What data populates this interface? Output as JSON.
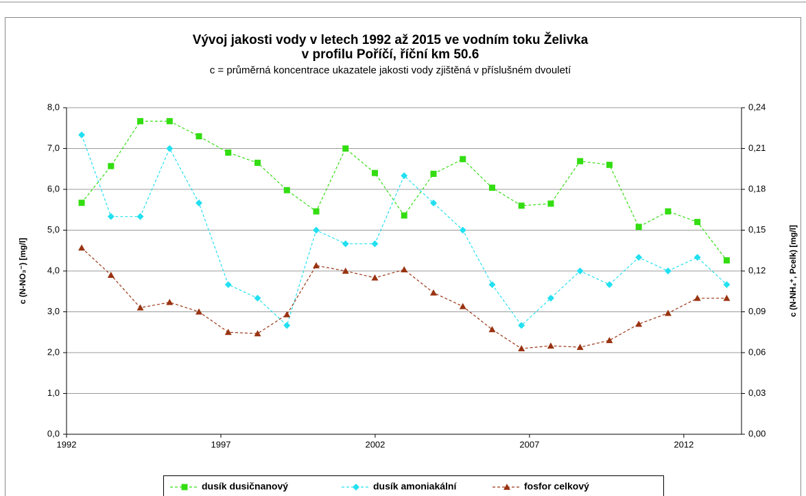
{
  "chart_data": {
    "type": "line",
    "title": "Vývoj jakosti vody v letech 1992 až 2015 ve vodním toku Želivka",
    "title_line2": "v profilu Poříčí, říční km 50.6",
    "subtitle": "c = průměrná koncentrace ukazatele jakosti vody zjištěná v příslušném dvouletí",
    "y_label": "c (N-NO₃⁻) [mg/l]",
    "y2_label": "c (N-NH₄⁺, Pcelk) [mg/l]",
    "x": [
      1992.49,
      1993.44,
      1994.39,
      1995.34,
      1996.29,
      1997.24,
      1998.19,
      1999.14,
      2000.09,
      2001.04,
      2001.99,
      2002.94,
      2003.89,
      2004.84,
      2005.79,
      2006.74,
      2007.69,
      2008.64,
      2009.59,
      2010.54,
      2011.49,
      2012.44,
      2013.39
    ],
    "xlim": [
      1992,
      2013.87
    ],
    "xticks": [
      1992,
      1997,
      2002,
      2007,
      2012
    ],
    "ylim": [
      0,
      8
    ],
    "yticks": [
      {
        "value": 0,
        "label": "0,0"
      },
      {
        "value": 1,
        "label": "1,0"
      },
      {
        "value": 2,
        "label": "2,0"
      },
      {
        "value": 3,
        "label": "3,0"
      },
      {
        "value": 4,
        "label": "4,0"
      },
      {
        "value": 5,
        "label": "5,0"
      },
      {
        "value": 6,
        "label": "6,0"
      },
      {
        "value": 7,
        "label": "7,0"
      },
      {
        "value": 8,
        "label": "8,0"
      }
    ],
    "y2lim": [
      0,
      0.24
    ],
    "y2ticks": [
      {
        "value": 0,
        "label": "0,00"
      },
      {
        "value": 0.03,
        "label": "0,03"
      },
      {
        "value": 0.06,
        "label": "0,06"
      },
      {
        "value": 0.09,
        "label": "0,09"
      },
      {
        "value": 0.12,
        "label": "0,12"
      },
      {
        "value": 0.15,
        "label": "0,15"
      },
      {
        "value": 0.18,
        "label": "0,18"
      },
      {
        "value": 0.21,
        "label": "0,21"
      },
      {
        "value": 0.24,
        "label": "0,24"
      }
    ],
    "grid": true,
    "legend": "bottom",
    "series": [
      {
        "name": "dusík dusičnanový",
        "color": "#33dd11",
        "marker": "square",
        "values": [
          5.67,
          6.57,
          7.67,
          7.67,
          7.3,
          6.9,
          6.65,
          5.98,
          5.46,
          7.0,
          6.4,
          5.36,
          6.38,
          6.74,
          6.04,
          5.6,
          5.65,
          6.69,
          6.6,
          5.08,
          5.46,
          5.2,
          4.26
        ]
      },
      {
        "name": "dusík amoniakální",
        "color": "#22e0f0",
        "marker": "diamond",
        "axis": "y2",
        "values": [
          0.22,
          0.16,
          0.16,
          0.21,
          0.17,
          0.11,
          0.1,
          0.08,
          0.15,
          0.14,
          0.14,
          0.19,
          0.17,
          0.15,
          0.11,
          0.08,
          0.1,
          0.12,
          0.11,
          0.13,
          0.12,
          0.13,
          0.11
        ]
      },
      {
        "name": "fosfor celkový",
        "color": "#993311",
        "marker": "triangle",
        "axis": "y2",
        "values": [
          0.137,
          0.117,
          0.093,
          0.097,
          0.09,
          0.075,
          0.074,
          0.088,
          0.124,
          0.12,
          0.115,
          0.121,
          0.104,
          0.094,
          0.077,
          0.063,
          0.065,
          0.064,
          0.069,
          0.081,
          0.089,
          0.1,
          0.1
        ]
      }
    ]
  }
}
